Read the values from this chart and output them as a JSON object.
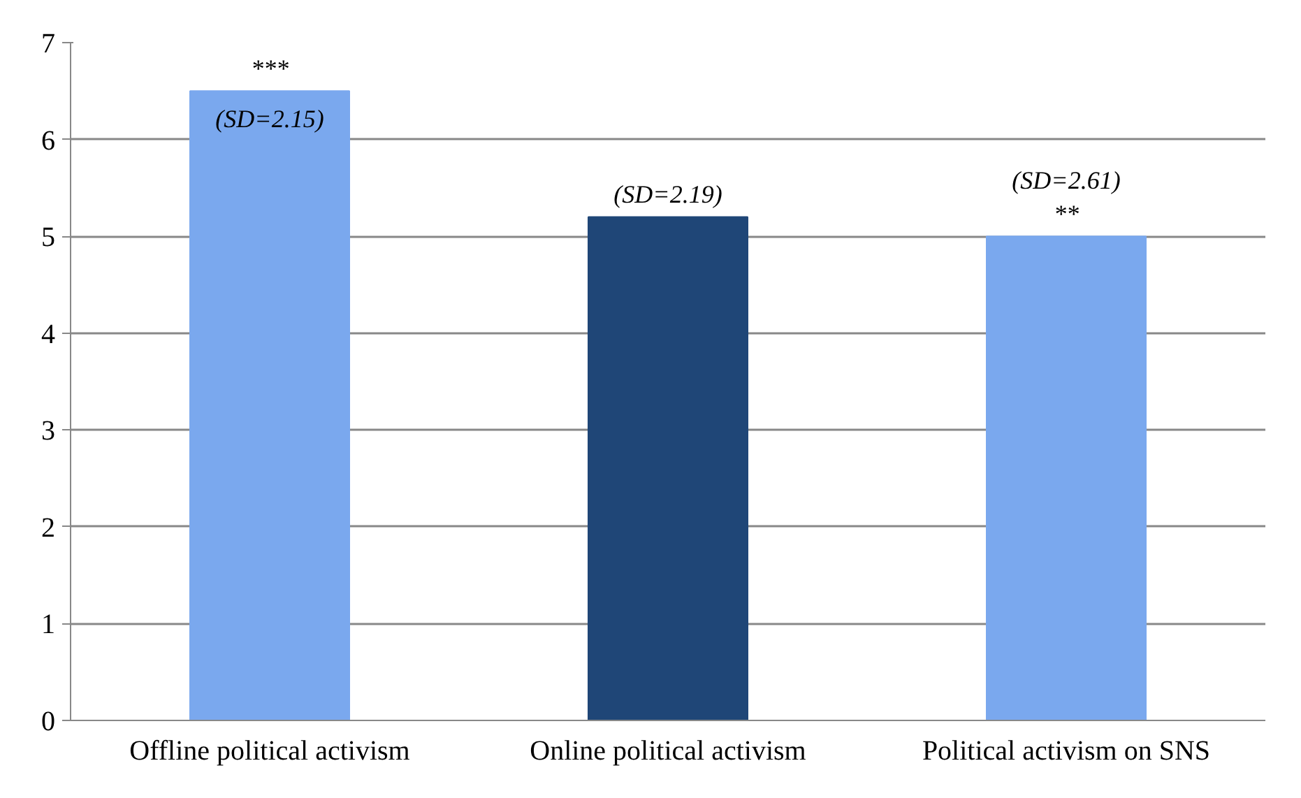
{
  "chart_data": {
    "type": "bar",
    "categories": [
      "Offline political activism",
      "Online political activism",
      "Political activism on SNS"
    ],
    "values": [
      6.5,
      5.2,
      5.0
    ],
    "colors": [
      "#7aa8ee",
      "#1f4677",
      "#7aa8ee"
    ],
    "ylim": [
      0,
      7
    ],
    "yticks": [
      0,
      1,
      2,
      3,
      4,
      5,
      6,
      7
    ],
    "grid": "y",
    "annotations": [
      {
        "text": "***",
        "x": "Offline political activism",
        "y": 6.5
      },
      {
        "text": "(SD=2.15)",
        "x": "Offline political activism",
        "y": 6.5
      },
      {
        "text": "(SD=2.19)",
        "x": "Online political activism",
        "y": 5.2
      },
      {
        "text": "**",
        "x": "Political activism on SNS",
        "y": 5.0
      },
      {
        "text": "(SD=2.61)",
        "x": "Political activism on SNS",
        "y": 5.0
      }
    ]
  }
}
